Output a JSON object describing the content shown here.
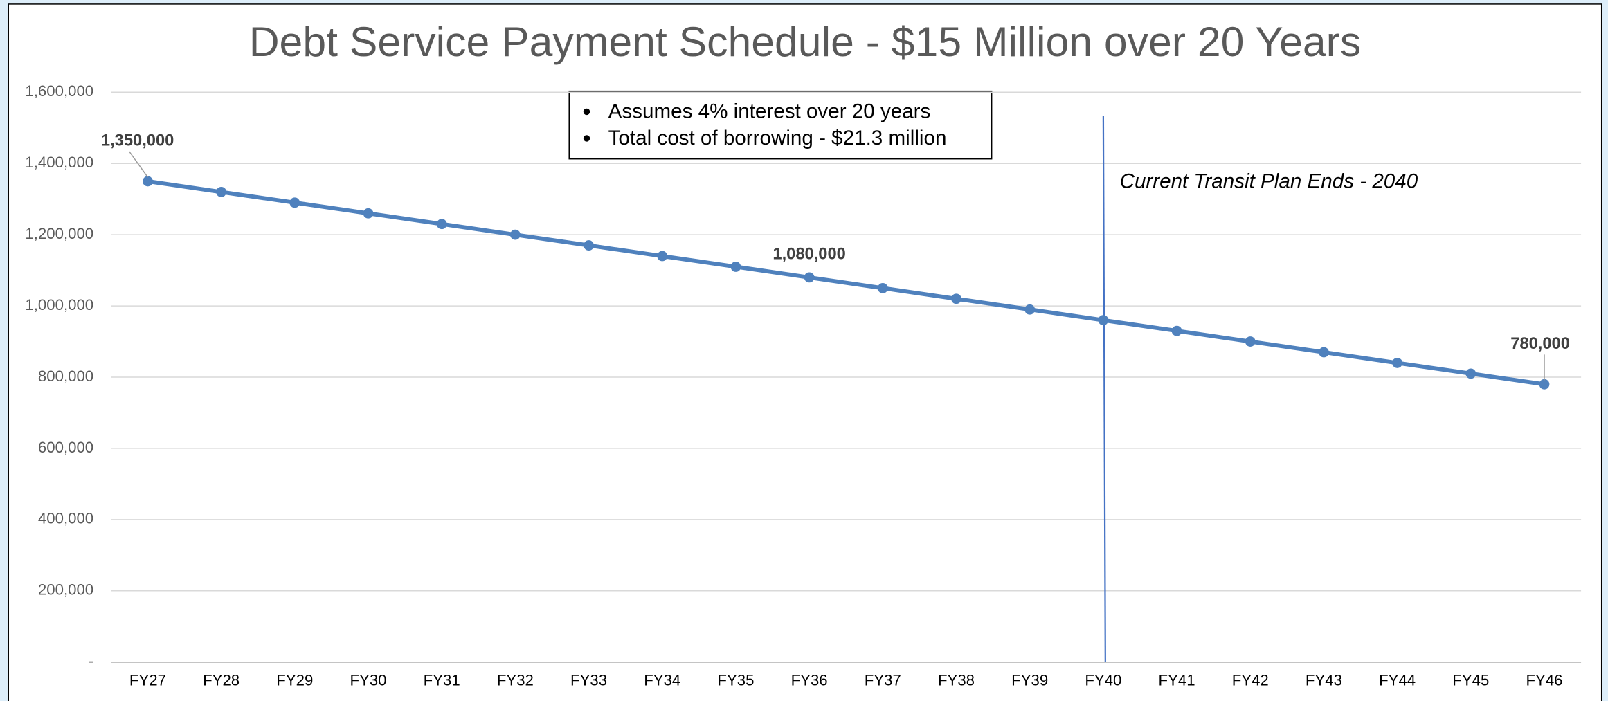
{
  "chart_data": {
    "type": "line",
    "title": "Debt Service Payment Schedule - $15 Million over 20 Years",
    "categories": [
      "FY27",
      "FY28",
      "FY29",
      "FY30",
      "FY31",
      "FY32",
      "FY33",
      "FY34",
      "FY35",
      "FY36",
      "FY37",
      "FY38",
      "FY39",
      "FY40",
      "FY41",
      "FY42",
      "FY43",
      "FY44",
      "FY45",
      "FY46"
    ],
    "series": [
      {
        "name": "Debt Service Payment",
        "color": "#4f81bd",
        "values": [
          1350000,
          1320000,
          1290000,
          1260000,
          1230000,
          1200000,
          1170000,
          1140000,
          1110000,
          1080000,
          1050000,
          1020000,
          990000,
          960000,
          930000,
          900000,
          870000,
          840000,
          810000,
          780000
        ],
        "value_labels": [
          "1,350,000",
          null,
          null,
          null,
          null,
          null,
          null,
          null,
          null,
          "1,080,000",
          null,
          null,
          null,
          null,
          null,
          null,
          null,
          null,
          null,
          "780,000"
        ]
      }
    ],
    "ylim": [
      0,
      1600000
    ],
    "yticks": [
      {
        "value": 0,
        "label": "-"
      },
      {
        "value": 200000,
        "label": "200,000"
      },
      {
        "value": 400000,
        "label": "400,000"
      },
      {
        "value": 600000,
        "label": "600,000"
      },
      {
        "value": 800000,
        "label": "800,000"
      },
      {
        "value": 1000000,
        "label": "1,000,000"
      },
      {
        "value": 1200000,
        "label": "1,200,000"
      },
      {
        "value": 1400000,
        "label": "1,400,000"
      },
      {
        "value": 1600000,
        "label": "1,600,000"
      }
    ],
    "grid": true,
    "notes": [
      "Assumes 4% interest over 20 years",
      "Total cost of borrowing - $21.3 million"
    ],
    "annotations": [
      {
        "text": "Current Transit Plan Ends - 2040",
        "x": "FY40"
      }
    ]
  }
}
